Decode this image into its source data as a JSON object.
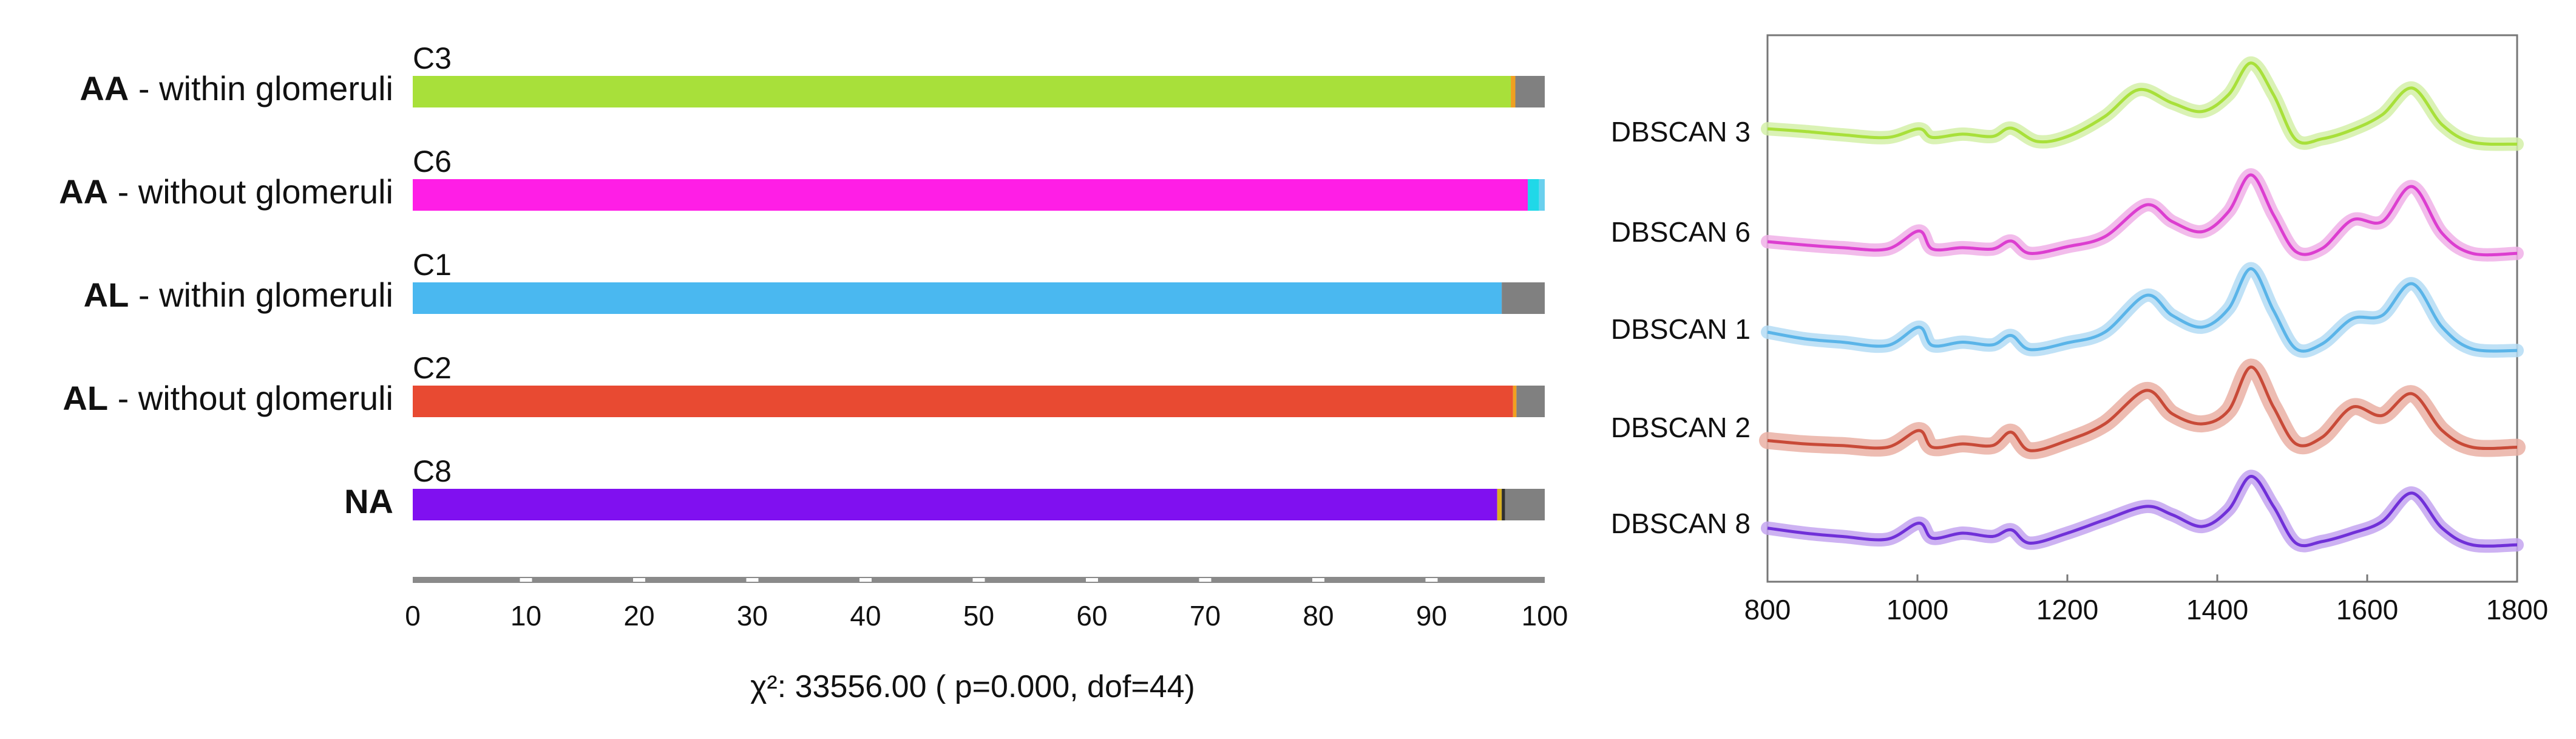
{
  "chart_data": [
    {
      "type": "bar",
      "orientation": "horizontal",
      "stacked": true,
      "xlim": [
        0,
        100
      ],
      "xticks": [
        0,
        10,
        20,
        30,
        40,
        50,
        60,
        70,
        80,
        90,
        100
      ],
      "xtick_labels": [
        "0",
        "10",
        "20",
        "30",
        "40",
        "50",
        "60",
        "70",
        "80",
        "90",
        "100"
      ],
      "annotation": "χ²: 33556.00 (  p=0.000, dof=44)",
      "rows": [
        {
          "label_bold": "AA",
          "label_rest": " - within glomeruli",
          "cluster": "C3",
          "segments": [
            {
              "value": 97.0,
              "color": "#a8e03a"
            },
            {
              "value": 0.4,
              "color": "#f0a020"
            },
            {
              "value": 2.6,
              "color": "#808080"
            }
          ]
        },
        {
          "label_bold": "AA",
          "label_rest": " - without glomeruli",
          "cluster": "C6",
          "segments": [
            {
              "value": 98.5,
              "color": "#ff1ee6"
            },
            {
              "value": 1.0,
              "color": "#20d8e8"
            },
            {
              "value": 0.5,
              "color": "#6ad0ee"
            }
          ]
        },
        {
          "label_bold": "AL",
          "label_rest": " - within glomeruli",
          "cluster": "C1",
          "segments": [
            {
              "value": 96.2,
              "color": "#4ab8f0"
            },
            {
              "value": 3.8,
              "color": "#808080"
            }
          ]
        },
        {
          "label_bold": "AL",
          "label_rest": " - without glomeruli",
          "cluster": "C2",
          "segments": [
            {
              "value": 97.2,
              "color": "#e84a32"
            },
            {
              "value": 0.3,
              "color": "#f0a020"
            },
            {
              "value": 2.5,
              "color": "#808080"
            }
          ]
        },
        {
          "label_bold": "NA",
          "label_rest": "",
          "cluster": "C8",
          "segments": [
            {
              "value": 95.8,
              "color": "#8010f0"
            },
            {
              "value": 0.4,
              "color": "#d8b020"
            },
            {
              "value": 0.3,
              "color": "#303030"
            },
            {
              "value": 3.5,
              "color": "#808080"
            }
          ]
        }
      ]
    },
    {
      "type": "line",
      "xlim": [
        800,
        1800
      ],
      "xticks": [
        800,
        1000,
        1200,
        1400,
        1600,
        1800
      ],
      "xtick_labels": [
        "800",
        "1000",
        "1200",
        "1400",
        "1600",
        "1800"
      ],
      "series": [
        {
          "name": "DBSCAN 3",
          "color": "#a8e03a",
          "band": "#d4f0a8",
          "points": [
            [
              800,
              0.78
            ],
            [
              850,
              0.7
            ],
            [
              900,
              0.6
            ],
            [
              960,
              0.52
            ],
            [
              1002,
              0.78
            ],
            [
              1020,
              0.52
            ],
            [
              1060,
              0.62
            ],
            [
              1100,
              0.55
            ],
            [
              1125,
              0.8
            ],
            [
              1160,
              0.4
            ],
            [
              1200,
              0.55
            ],
            [
              1250,
              1.15
            ],
            [
              1295,
              1.95
            ],
            [
              1340,
              1.55
            ],
            [
              1380,
              1.3
            ],
            [
              1415,
              1.8
            ],
            [
              1445,
              2.75
            ],
            [
              1475,
              1.8
            ],
            [
              1505,
              0.45
            ],
            [
              1540,
              0.48
            ],
            [
              1580,
              0.75
            ],
            [
              1620,
              1.2
            ],
            [
              1660,
              2.0
            ],
            [
              1700,
              0.9
            ],
            [
              1740,
              0.38
            ],
            [
              1800,
              0.32
            ]
          ]
        },
        {
          "name": "DBSCAN 6",
          "color": "#dc3ed0",
          "band": "#f0b0e8",
          "points": [
            [
              800,
              0.4
            ],
            [
              850,
              0.3
            ],
            [
              900,
              0.22
            ],
            [
              960,
              0.18
            ],
            [
              1002,
              0.72
            ],
            [
              1020,
              0.18
            ],
            [
              1060,
              0.22
            ],
            [
              1100,
              0.18
            ],
            [
              1125,
              0.42
            ],
            [
              1150,
              0.05
            ],
            [
              1200,
              0.25
            ],
            [
              1250,
              0.55
            ],
            [
              1305,
              1.5
            ],
            [
              1340,
              1.0
            ],
            [
              1380,
              0.7
            ],
            [
              1415,
              1.3
            ],
            [
              1445,
              2.4
            ],
            [
              1475,
              1.2
            ],
            [
              1505,
              0.1
            ],
            [
              1540,
              0.2
            ],
            [
              1580,
              1.05
            ],
            [
              1620,
              1.0
            ],
            [
              1660,
              2.05
            ],
            [
              1700,
              0.65
            ],
            [
              1740,
              0.05
            ],
            [
              1800,
              0.05
            ]
          ]
        },
        {
          "name": "DBSCAN 1",
          "color": "#5ab4e8",
          "band": "#b4dcf4",
          "points": [
            [
              800,
              0.6
            ],
            [
              850,
              0.4
            ],
            [
              900,
              0.3
            ],
            [
              960,
              0.2
            ],
            [
              1002,
              0.75
            ],
            [
              1020,
              0.2
            ],
            [
              1060,
              0.3
            ],
            [
              1100,
              0.22
            ],
            [
              1125,
              0.5
            ],
            [
              1150,
              0.08
            ],
            [
              1200,
              0.28
            ],
            [
              1250,
              0.6
            ],
            [
              1305,
              1.7
            ],
            [
              1340,
              1.1
            ],
            [
              1380,
              0.75
            ],
            [
              1415,
              1.3
            ],
            [
              1445,
              2.5
            ],
            [
              1475,
              1.25
            ],
            [
              1505,
              0.1
            ],
            [
              1540,
              0.25
            ],
            [
              1580,
              1.0
            ],
            [
              1620,
              1.1
            ],
            [
              1660,
              2.05
            ],
            [
              1700,
              0.75
            ],
            [
              1740,
              0.1
            ],
            [
              1800,
              0.05
            ]
          ]
        },
        {
          "name": "DBSCAN 2",
          "color": "#c84a38",
          "band": "#eab0a4",
          "points": [
            [
              800,
              0.3
            ],
            [
              850,
              0.2
            ],
            [
              900,
              0.15
            ],
            [
              960,
              0.1
            ],
            [
              1002,
              0.6
            ],
            [
              1020,
              0.1
            ],
            [
              1060,
              0.2
            ],
            [
              1100,
              0.15
            ],
            [
              1125,
              0.55
            ],
            [
              1150,
              0.0
            ],
            [
              1200,
              0.3
            ],
            [
              1250,
              0.8
            ],
            [
              1305,
              1.8
            ],
            [
              1340,
              1.1
            ],
            [
              1380,
              0.8
            ],
            [
              1415,
              1.2
            ],
            [
              1445,
              2.5
            ],
            [
              1475,
              1.3
            ],
            [
              1505,
              0.2
            ],
            [
              1540,
              0.4
            ],
            [
              1580,
              1.3
            ],
            [
              1620,
              1.05
            ],
            [
              1660,
              1.7
            ],
            [
              1700,
              0.6
            ],
            [
              1740,
              0.1
            ],
            [
              1800,
              0.1
            ]
          ]
        },
        {
          "name": "DBSCAN 8",
          "color": "#7030d8",
          "band": "#c4a4f0",
          "points": [
            [
              800,
              0.55
            ],
            [
              850,
              0.4
            ],
            [
              900,
              0.3
            ],
            [
              960,
              0.22
            ],
            [
              1002,
              0.7
            ],
            [
              1020,
              0.25
            ],
            [
              1060,
              0.4
            ],
            [
              1100,
              0.3
            ],
            [
              1125,
              0.5
            ],
            [
              1150,
              0.1
            ],
            [
              1200,
              0.4
            ],
            [
              1250,
              0.8
            ],
            [
              1305,
              1.2
            ],
            [
              1340,
              0.95
            ],
            [
              1380,
              0.6
            ],
            [
              1415,
              1.1
            ],
            [
              1445,
              2.1
            ],
            [
              1475,
              1.2
            ],
            [
              1505,
              0.1
            ],
            [
              1540,
              0.15
            ],
            [
              1580,
              0.4
            ],
            [
              1620,
              0.75
            ],
            [
              1660,
              1.6
            ],
            [
              1700,
              0.55
            ],
            [
              1740,
              0.05
            ],
            [
              1800,
              0.05
            ]
          ]
        }
      ]
    }
  ]
}
